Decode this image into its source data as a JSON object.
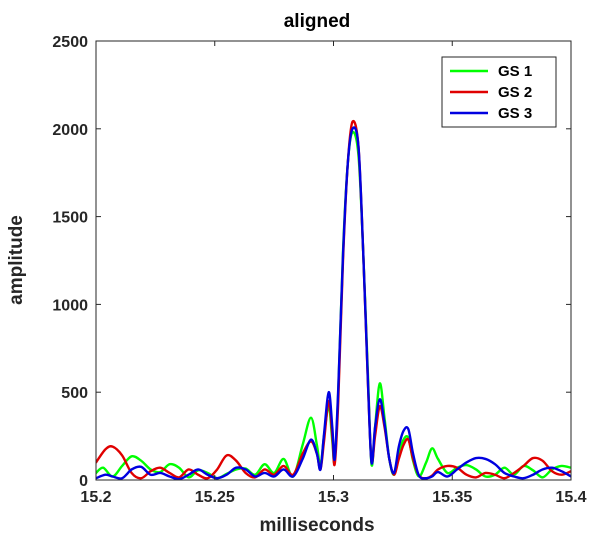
{
  "chart_data": {
    "type": "line",
    "title": "aligned",
    "xlabel": "milliseconds",
    "ylabel": "amplitude",
    "xlim": [
      15.2,
      15.4
    ],
    "ylim": [
      0,
      2500
    ],
    "xticks": [
      15.2,
      15.25,
      15.3,
      15.35,
      15.4
    ],
    "xtick_labels": [
      "15.2",
      "15.25",
      "15.3",
      "15.35",
      "15.4"
    ],
    "yticks": [
      0,
      500,
      1000,
      1500,
      2000,
      2500
    ],
    "ytick_labels": [
      "0",
      "500",
      "1000",
      "1500",
      "2000",
      "2500"
    ],
    "legend_position": "top-right",
    "series": [
      {
        "name": "GS 1",
        "color": "#00ff00",
        "points": [
          [
            15.2,
            40
          ],
          [
            15.203,
            70
          ],
          [
            15.207,
            20
          ],
          [
            15.211,
            80
          ],
          [
            15.215,
            135
          ],
          [
            15.219,
            110
          ],
          [
            15.223,
            60
          ],
          [
            15.227,
            45
          ],
          [
            15.231,
            90
          ],
          [
            15.235,
            70
          ],
          [
            15.239,
            15
          ],
          [
            15.243,
            55
          ],
          [
            15.247,
            40
          ],
          [
            15.251,
            10
          ],
          [
            15.255,
            35
          ],
          [
            15.259,
            60
          ],
          [
            15.263,
            65
          ],
          [
            15.267,
            30
          ],
          [
            15.271,
            90
          ],
          [
            15.275,
            40
          ],
          [
            15.279,
            120
          ],
          [
            15.283,
            20
          ],
          [
            15.287,
            200
          ],
          [
            15.2905,
            355
          ],
          [
            15.293,
            200
          ],
          [
            15.2945,
            80
          ],
          [
            15.296,
            250
          ],
          [
            15.298,
            420
          ],
          [
            15.2995,
            220
          ],
          [
            15.3005,
            110
          ],
          [
            15.302,
            500
          ],
          [
            15.304,
            1300
          ],
          [
            15.306,
            1800
          ],
          [
            15.308,
            1980
          ],
          [
            15.3105,
            1850
          ],
          [
            15.3125,
            1300
          ],
          [
            15.3145,
            600
          ],
          [
            15.316,
            90
          ],
          [
            15.3175,
            300
          ],
          [
            15.3195,
            550
          ],
          [
            15.3215,
            350
          ],
          [
            15.3235,
            120
          ],
          [
            15.3255,
            30
          ],
          [
            15.3275,
            150
          ],
          [
            15.3295,
            230
          ],
          [
            15.3315,
            240
          ],
          [
            15.3335,
            110
          ],
          [
            15.336,
            20
          ],
          [
            15.339,
            100
          ],
          [
            15.3415,
            180
          ],
          [
            15.344,
            120
          ],
          [
            15.348,
            40
          ],
          [
            15.352,
            70
          ],
          [
            15.356,
            85
          ],
          [
            15.36,
            60
          ],
          [
            15.364,
            20
          ],
          [
            15.368,
            30
          ],
          [
            15.372,
            70
          ],
          [
            15.376,
            30
          ],
          [
            15.38,
            80
          ],
          [
            15.384,
            55
          ],
          [
            15.388,
            15
          ],
          [
            15.392,
            60
          ],
          [
            15.396,
            80
          ],
          [
            15.4,
            70
          ]
        ]
      },
      {
        "name": "GS 2",
        "color": "#e00000",
        "points": [
          [
            15.2,
            100
          ],
          [
            15.204,
            175
          ],
          [
            15.207,
            190
          ],
          [
            15.211,
            140
          ],
          [
            15.215,
            40
          ],
          [
            15.219,
            10
          ],
          [
            15.223,
            50
          ],
          [
            15.227,
            70
          ],
          [
            15.231,
            40
          ],
          [
            15.235,
            15
          ],
          [
            15.239,
            60
          ],
          [
            15.243,
            30
          ],
          [
            15.247,
            10
          ],
          [
            15.251,
            60
          ],
          [
            15.255,
            140
          ],
          [
            15.259,
            110
          ],
          [
            15.263,
            40
          ],
          [
            15.267,
            15
          ],
          [
            15.271,
            60
          ],
          [
            15.275,
            30
          ],
          [
            15.279,
            80
          ],
          [
            15.283,
            30
          ],
          [
            15.287,
            150
          ],
          [
            15.2905,
            220
          ],
          [
            15.293,
            150
          ],
          [
            15.2945,
            60
          ],
          [
            15.296,
            220
          ],
          [
            15.298,
            450
          ],
          [
            15.2995,
            250
          ],
          [
            15.3005,
            90
          ],
          [
            15.302,
            450
          ],
          [
            15.304,
            1250
          ],
          [
            15.306,
            1800
          ],
          [
            15.308,
            2040
          ],
          [
            15.3105,
            1900
          ],
          [
            15.3125,
            1300
          ],
          [
            15.3145,
            550
          ],
          [
            15.316,
            110
          ],
          [
            15.3175,
            250
          ],
          [
            15.3195,
            420
          ],
          [
            15.3215,
            300
          ],
          [
            15.3235,
            120
          ],
          [
            15.3255,
            30
          ],
          [
            15.3275,
            120
          ],
          [
            15.3295,
            200
          ],
          [
            15.3315,
            230
          ],
          [
            15.3335,
            120
          ],
          [
            15.336,
            25
          ],
          [
            15.339,
            10
          ],
          [
            15.3415,
            25
          ],
          [
            15.344,
            60
          ],
          [
            15.348,
            80
          ],
          [
            15.352,
            70
          ],
          [
            15.356,
            30
          ],
          [
            15.36,
            15
          ],
          [
            15.364,
            40
          ],
          [
            15.368,
            30
          ],
          [
            15.372,
            10
          ],
          [
            15.376,
            40
          ],
          [
            15.38,
            80
          ],
          [
            15.384,
            125
          ],
          [
            15.388,
            110
          ],
          [
            15.392,
            50
          ],
          [
            15.396,
            30
          ],
          [
            15.4,
            50
          ]
        ]
      },
      {
        "name": "GS 3",
        "color": "#0000e0",
        "points": [
          [
            15.2,
            10
          ],
          [
            15.204,
            30
          ],
          [
            15.207,
            20
          ],
          [
            15.211,
            10
          ],
          [
            15.215,
            60
          ],
          [
            15.219,
            75
          ],
          [
            15.223,
            30
          ],
          [
            15.227,
            40
          ],
          [
            15.231,
            20
          ],
          [
            15.235,
            5
          ],
          [
            15.239,
            30
          ],
          [
            15.243,
            60
          ],
          [
            15.247,
            30
          ],
          [
            15.251,
            10
          ],
          [
            15.255,
            30
          ],
          [
            15.259,
            70
          ],
          [
            15.263,
            60
          ],
          [
            15.267,
            20
          ],
          [
            15.271,
            40
          ],
          [
            15.275,
            20
          ],
          [
            15.279,
            60
          ],
          [
            15.283,
            20
          ],
          [
            15.287,
            120
          ],
          [
            15.2905,
            230
          ],
          [
            15.293,
            150
          ],
          [
            15.2945,
            60
          ],
          [
            15.296,
            260
          ],
          [
            15.298,
            500
          ],
          [
            15.2995,
            300
          ],
          [
            15.3005,
            120
          ],
          [
            15.302,
            520
          ],
          [
            15.304,
            1280
          ],
          [
            15.306,
            1800
          ],
          [
            15.308,
            2000
          ],
          [
            15.3105,
            1900
          ],
          [
            15.3125,
            1300
          ],
          [
            15.3145,
            560
          ],
          [
            15.316,
            100
          ],
          [
            15.3175,
            300
          ],
          [
            15.3195,
            460
          ],
          [
            15.3215,
            320
          ],
          [
            15.3235,
            120
          ],
          [
            15.3255,
            40
          ],
          [
            15.3275,
            190
          ],
          [
            15.3295,
            280
          ],
          [
            15.3315,
            290
          ],
          [
            15.3335,
            150
          ],
          [
            15.336,
            25
          ],
          [
            15.339,
            10
          ],
          [
            15.3415,
            20
          ],
          [
            15.344,
            45
          ],
          [
            15.348,
            20
          ],
          [
            15.352,
            60
          ],
          [
            15.356,
            100
          ],
          [
            15.36,
            125
          ],
          [
            15.364,
            120
          ],
          [
            15.368,
            90
          ],
          [
            15.372,
            40
          ],
          [
            15.376,
            20
          ],
          [
            15.38,
            10
          ],
          [
            15.384,
            30
          ],
          [
            15.388,
            60
          ],
          [
            15.392,
            70
          ],
          [
            15.396,
            50
          ],
          [
            15.4,
            20
          ]
        ]
      }
    ]
  }
}
